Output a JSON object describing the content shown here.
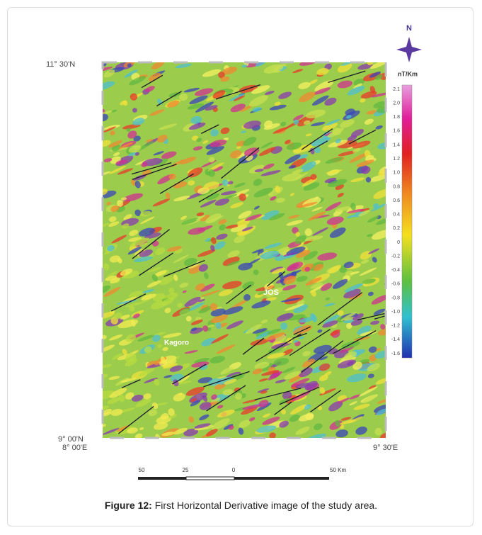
{
  "figure": {
    "north": "N",
    "unit": "nT/Km",
    "colorbar": {
      "ticks": [
        "2.1",
        "2.0",
        "1.8",
        "1.6",
        "1.4",
        "1.2",
        "1.0",
        "0.8",
        "0.6",
        "0.4",
        "0.2",
        "0",
        "-0.2",
        "-0.4",
        "-0.6",
        "-0.8",
        "-1.0",
        "-1.2",
        "-1.4",
        "-1.6"
      ]
    },
    "coordinates": {
      "top_left": "11° 30'N",
      "bottom_left_lat": "9° 00'N",
      "bottom_left_lon": "8° 00'E",
      "bottom_right": "9° 30'E"
    },
    "places": [
      "JOS",
      "Kagoro"
    ],
    "scale_bar": {
      "labels": [
        "50",
        "25",
        "0",
        "50 Km"
      ]
    },
    "caption": {
      "label": "Figure 12:",
      "text": " First Horizontal Derivative image of the study area."
    }
  }
}
